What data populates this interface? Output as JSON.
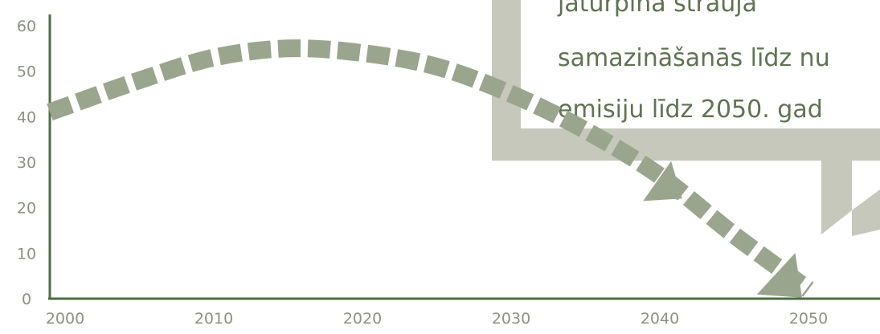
{
  "chart_data": {
    "type": "line",
    "title": "",
    "xlabel": "",
    "ylabel": "",
    "xlim": [
      2000,
      2055
    ],
    "ylim": [
      0,
      60
    ],
    "x_ticks": [
      "2000",
      "2010",
      "2020",
      "2030",
      "2040",
      "2050"
    ],
    "y_ticks": [
      "0",
      "10",
      "20",
      "30",
      "40",
      "50",
      "60"
    ],
    "grid": false,
    "series": [
      {
        "style": "dashed-arrow",
        "color": "#9aa58d",
        "x": [
          2000,
          2005,
          2010,
          2015,
          2020,
          2025,
          2030,
          2035,
          2040,
          2045,
          2050
        ],
        "y": [
          41,
          48,
          53,
          55,
          54,
          51,
          45,
          37,
          27,
          14,
          2
        ]
      }
    ],
    "annotation": {
      "lines": [
        "jāturpina strauja",
        "samazināšanās līdz nu",
        "emisiju līdz 2050. gad"
      ],
      "box_color": "#c5c8bb",
      "text_color": "#5f7352"
    }
  }
}
